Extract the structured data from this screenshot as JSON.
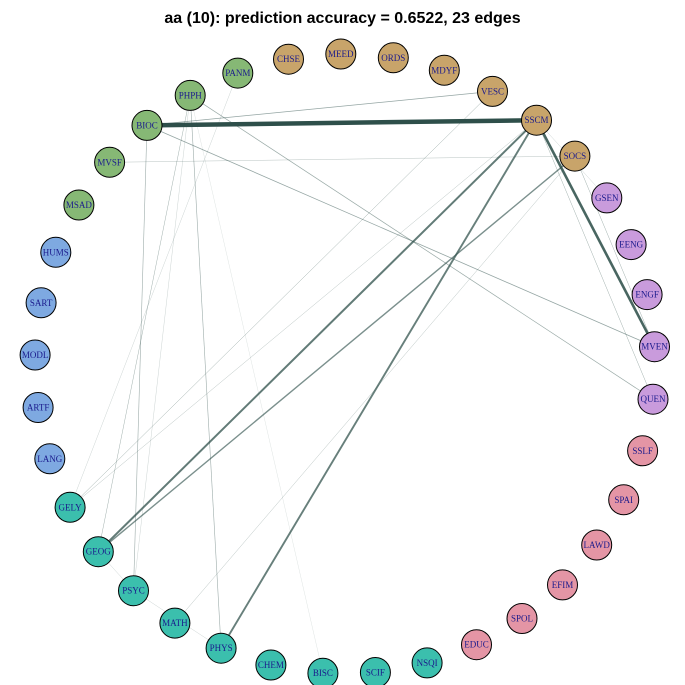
{
  "title": "aa (10): prediction accuracy = 0.6522, 23 edges",
  "colors": {
    "group_tan": "#c8a46a",
    "group_purple": "#c99bdc",
    "group_pink": "#e495a5",
    "group_teal": "#3bbfad",
    "group_blue": "#7ea9e1",
    "group_green": "#86b875",
    "edge": "#2e4f4a"
  },
  "nodes": [
    {
      "id": "CHSE",
      "group": "tan"
    },
    {
      "id": "MEED",
      "group": "tan"
    },
    {
      "id": "ORDS",
      "group": "tan"
    },
    {
      "id": "MDYF",
      "group": "tan"
    },
    {
      "id": "VESC",
      "group": "tan"
    },
    {
      "id": "SSCM",
      "group": "tan"
    },
    {
      "id": "SOCS",
      "group": "tan"
    },
    {
      "id": "GSEN",
      "group": "purple"
    },
    {
      "id": "EENG",
      "group": "purple"
    },
    {
      "id": "ENGF",
      "group": "purple"
    },
    {
      "id": "MVEN",
      "group": "purple"
    },
    {
      "id": "QUEN",
      "group": "purple"
    },
    {
      "id": "SSLF",
      "group": "pink"
    },
    {
      "id": "SPAI",
      "group": "pink"
    },
    {
      "id": "LAWD",
      "group": "pink"
    },
    {
      "id": "EFIM",
      "group": "pink"
    },
    {
      "id": "SPOL",
      "group": "pink"
    },
    {
      "id": "EDUC",
      "group": "pink"
    },
    {
      "id": "NSQI",
      "group": "teal"
    },
    {
      "id": "SCIF",
      "group": "teal"
    },
    {
      "id": "BISC",
      "group": "teal"
    },
    {
      "id": "CHEM",
      "group": "teal"
    },
    {
      "id": "PHYS",
      "group": "teal"
    },
    {
      "id": "MATH",
      "group": "teal"
    },
    {
      "id": "PSYC",
      "group": "teal"
    },
    {
      "id": "GEOG",
      "group": "teal"
    },
    {
      "id": "GELY",
      "group": "teal"
    },
    {
      "id": "LANG",
      "group": "blue"
    },
    {
      "id": "ARTF",
      "group": "blue"
    },
    {
      "id": "MODL",
      "group": "blue"
    },
    {
      "id": "SART",
      "group": "blue"
    },
    {
      "id": "HUMS",
      "group": "blue"
    },
    {
      "id": "MSAD",
      "group": "green"
    },
    {
      "id": "MVSF",
      "group": "green"
    },
    {
      "id": "BIOC",
      "group": "green"
    },
    {
      "id": "PHPH",
      "group": "green"
    },
    {
      "id": "PANM",
      "group": "green"
    }
  ],
  "edges": [
    {
      "source": "BIOC",
      "target": "SSCM",
      "weight": 4.5
    },
    {
      "source": "SSCM",
      "target": "MVEN",
      "weight": 2.6
    },
    {
      "source": "SSCM",
      "target": "GEOG",
      "weight": 2.0
    },
    {
      "source": "SOCS",
      "target": "GEOG",
      "weight": 1.4
    },
    {
      "source": "SSCM",
      "target": "PHYS",
      "weight": 1.9
    },
    {
      "source": "BIOC",
      "target": "VESC",
      "weight": 0.8
    },
    {
      "source": "BIOC",
      "target": "MVEN",
      "weight": 0.8
    },
    {
      "source": "PHPH",
      "target": "QUEN",
      "weight": 0.7
    },
    {
      "source": "BIOC",
      "target": "PSYC",
      "weight": 0.6
    },
    {
      "source": "PHPH",
      "target": "PHYS",
      "weight": 0.6
    },
    {
      "source": "PHPH",
      "target": "GEOG",
      "weight": 0.5
    },
    {
      "source": "SSCM",
      "target": "QUEN",
      "weight": 0.5
    },
    {
      "source": "SOCS",
      "target": "MVEN",
      "weight": 0.5
    },
    {
      "source": "MVSF",
      "target": "SOCS",
      "weight": 0.4
    },
    {
      "source": "VESC",
      "target": "GELY",
      "weight": 0.5
    },
    {
      "source": "SOCS",
      "target": "MATH",
      "weight": 0.4
    },
    {
      "source": "SSCM",
      "target": "GELY",
      "weight": 0.4
    },
    {
      "source": "SSCM",
      "target": "GSEN",
      "weight": 0.3
    },
    {
      "source": "PANM",
      "target": "GELY",
      "weight": 0.3
    },
    {
      "source": "PHPH",
      "target": "PSYC",
      "weight": 0.3
    },
    {
      "source": "PHPH",
      "target": "BISC",
      "weight": 0.2
    },
    {
      "source": "PHYS",
      "target": "PSYC",
      "weight": 0.3
    },
    {
      "source": "GEOG",
      "target": "PSYC",
      "weight": 0.3
    }
  ]
}
